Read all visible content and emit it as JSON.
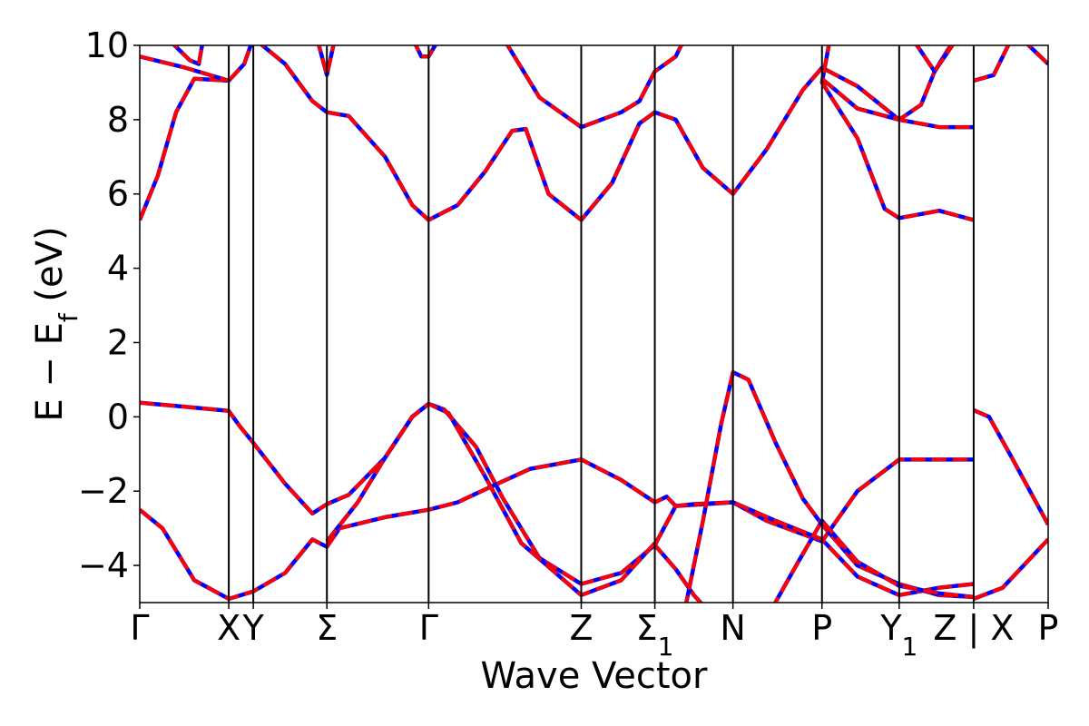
{
  "chart_data": {
    "type": "line",
    "title": "",
    "xlabel": "Wave Vector",
    "ylabel": "E − E_f (eV)",
    "ylabel_parts": {
      "main": "E − E",
      "sub": "f",
      "unit": " (eV)"
    },
    "ylim": [
      -5,
      10
    ],
    "yticks": [
      -4,
      -2,
      0,
      2,
      4,
      6,
      8,
      10
    ],
    "ytick_labels": [
      "−4",
      "−2",
      "0",
      "2",
      "4",
      "6",
      "8",
      "10"
    ],
    "xlim": [
      0,
      10.0
    ],
    "kpoints": [
      {
        "x": 0.0,
        "label": "Γ",
        "sub": ""
      },
      {
        "x": 0.98,
        "label": "X",
        "sub": ""
      },
      {
        "x": 1.25,
        "label": "Y",
        "sub": ""
      },
      {
        "x": 2.06,
        "label": "Σ",
        "sub": ""
      },
      {
        "x": 3.18,
        "label": "Γ",
        "sub": ""
      },
      {
        "x": 4.86,
        "label": "Z",
        "sub": ""
      },
      {
        "x": 5.67,
        "label": "Σ",
        "sub": "1"
      },
      {
        "x": 6.53,
        "label": "N",
        "sub": ""
      },
      {
        "x": 7.51,
        "label": "P",
        "sub": ""
      },
      {
        "x": 8.36,
        "label": "Y",
        "sub": "1"
      },
      {
        "x": 9.18,
        "label": "Z | X",
        "sub": ""
      },
      {
        "x": 10.0,
        "label": "P",
        "sub": ""
      }
    ],
    "series_style": [
      {
        "color": "#0000ff",
        "dashed": false
      },
      {
        "color": "#ff0000",
        "dashed": true
      }
    ],
    "bands": [
      [
        [
          0,
          0.38
        ],
        [
          0.5,
          0.27
        ],
        [
          0.98,
          0.16
        ],
        [
          1.1,
          -0.25
        ],
        [
          1.25,
          -0.7
        ],
        [
          1.6,
          -1.8
        ],
        [
          1.9,
          -2.6
        ],
        [
          2.06,
          -2.35
        ],
        [
          2.3,
          -2.1
        ],
        [
          2.7,
          -1.1
        ],
        [
          3.0,
          0.0
        ],
        [
          3.18,
          0.35
        ],
        [
          3.35,
          0.2
        ],
        [
          3.7,
          -0.8
        ],
        [
          4.0,
          -2.2
        ],
        [
          4.4,
          -3.8
        ],
        [
          4.86,
          -4.5
        ],
        [
          5.3,
          -4.2
        ],
        [
          5.67,
          -3.45
        ],
        [
          5.9,
          -4.1
        ],
        [
          6.1,
          -4.8
        ],
        [
          6.25,
          -5.2
        ]
      ],
      [
        [
          0,
          -2.5
        ],
        [
          0.25,
          -3.0
        ],
        [
          0.6,
          -4.4
        ],
        [
          0.98,
          -4.9
        ],
        [
          1.25,
          -4.7
        ],
        [
          1.6,
          -4.2
        ],
        [
          1.9,
          -3.3
        ],
        [
          2.06,
          -3.5
        ],
        [
          2.2,
          -3.0
        ],
        [
          2.7,
          -2.7
        ],
        [
          3.18,
          -2.5
        ],
        [
          3.5,
          -2.3
        ],
        [
          3.85,
          -1.9
        ],
        [
          4.3,
          -1.4
        ],
        [
          4.86,
          -1.15
        ],
        [
          5.3,
          -1.7
        ],
        [
          5.67,
          -2.3
        ],
        [
          5.8,
          -2.15
        ],
        [
          5.9,
          -2.4
        ],
        [
          6.53,
          -2.3
        ],
        [
          6.9,
          -2.8
        ],
        [
          7.51,
          -3.35
        ],
        [
          7.9,
          -2.0
        ],
        [
          8.36,
          -1.15
        ],
        [
          9.18,
          -1.15
        ]
      ],
      [
        [
          2.06,
          -3.35
        ],
        [
          2.4,
          -2.3
        ],
        [
          2.7,
          -1.1
        ],
        [
          3.0,
          0.0
        ],
        [
          3.18,
          0.35
        ],
        [
          3.4,
          0.1
        ],
        [
          3.8,
          -1.6
        ],
        [
          4.2,
          -3.4
        ],
        [
          4.86,
          -4.8
        ],
        [
          5.3,
          -4.4
        ],
        [
          5.67,
          -3.4
        ]
      ],
      [
        [
          5.67,
          -3.45
        ],
        [
          5.9,
          -2.4
        ],
        [
          6.1,
          -2.35
        ],
        [
          6.53,
          -2.3
        ],
        [
          7.0,
          -2.8
        ],
        [
          7.51,
          -3.3
        ],
        [
          7.9,
          -4.3
        ],
        [
          8.36,
          -4.8
        ],
        [
          8.8,
          -4.6
        ],
        [
          9.18,
          -4.5
        ]
      ],
      [
        [
          6.0,
          -5.2
        ],
        [
          6.2,
          -2.8
        ],
        [
          6.4,
          -0.2
        ],
        [
          6.53,
          1.2
        ],
        [
          6.7,
          1.0
        ],
        [
          7.0,
          -0.7
        ],
        [
          7.3,
          -2.2
        ],
        [
          7.51,
          -2.9
        ],
        [
          7.9,
          -4.0
        ],
        [
          8.36,
          -4.5
        ],
        [
          8.8,
          -4.8
        ],
        [
          9.18,
          -4.85
        ]
      ],
      [
        [
          6.95,
          -5.2
        ],
        [
          7.25,
          -3.9
        ],
        [
          7.51,
          -2.8
        ],
        [
          7.9,
          -3.9
        ],
        [
          8.36,
          -4.55
        ],
        [
          8.8,
          -4.75
        ],
        [
          9.18,
          -4.85
        ]
      ],
      [
        [
          9.18,
          0.18
        ],
        [
          9.35,
          0.0
        ],
        [
          9.6,
          -1.1
        ],
        [
          10.0,
          -2.9
        ]
      ],
      [
        [
          9.18,
          -4.9
        ],
        [
          9.5,
          -4.6
        ],
        [
          10.0,
          -3.3
        ]
      ],
      [
        [
          0,
          5.3
        ],
        [
          0.2,
          6.5
        ],
        [
          0.4,
          8.2
        ],
        [
          0.6,
          9.1
        ],
        [
          0.98,
          9.05
        ],
        [
          1.15,
          9.5
        ],
        [
          1.25,
          10.2
        ]
      ],
      [
        [
          0,
          9.7
        ],
        [
          0.5,
          9.4
        ],
        [
          0.98,
          9.05
        ]
      ],
      [
        [
          0.3,
          10.2
        ],
        [
          0.55,
          9.6
        ],
        [
          0.65,
          9.5
        ],
        [
          0.7,
          10.2
        ]
      ],
      [
        [
          1.25,
          10.2
        ],
        [
          1.6,
          9.5
        ],
        [
          1.9,
          8.5
        ],
        [
          2.06,
          8.2
        ],
        [
          2.3,
          8.1
        ],
        [
          2.7,
          7.0
        ],
        [
          3.0,
          5.7
        ],
        [
          3.18,
          5.3
        ],
        [
          3.5,
          5.7
        ],
        [
          3.8,
          6.6
        ],
        [
          4.1,
          7.7
        ],
        [
          4.25,
          7.75
        ],
        [
          4.5,
          6.0
        ],
        [
          4.86,
          5.3
        ],
        [
          5.2,
          6.3
        ],
        [
          5.5,
          7.9
        ],
        [
          5.67,
          8.2
        ],
        [
          5.9,
          8.0
        ],
        [
          6.2,
          6.7
        ],
        [
          6.53,
          6.0
        ],
        [
          6.9,
          7.2
        ],
        [
          7.3,
          8.8
        ],
        [
          7.51,
          9.4
        ],
        [
          7.9,
          8.9
        ],
        [
          8.36,
          8.0
        ],
        [
          8.6,
          8.4
        ],
        [
          8.75,
          9.3
        ],
        [
          8.9,
          9.9
        ],
        [
          9.0,
          10.2
        ]
      ],
      [
        [
          1.95,
          10.2
        ],
        [
          2.06,
          9.2
        ],
        [
          2.15,
          10.2
        ]
      ],
      [
        [
          3.0,
          10.2
        ],
        [
          3.1,
          9.7
        ],
        [
          3.18,
          9.7
        ],
        [
          3.3,
          10.2
        ]
      ],
      [
        [
          4.0,
          10.2
        ],
        [
          4.4,
          8.6
        ],
        [
          4.86,
          7.8
        ],
        [
          5.3,
          8.2
        ],
        [
          5.5,
          8.5
        ],
        [
          5.67,
          9.3
        ],
        [
          5.9,
          9.7
        ],
        [
          6.0,
          10.2
        ]
      ],
      [
        [
          7.6,
          10.2
        ],
        [
          7.51,
          9.0
        ],
        [
          7.9,
          7.5
        ],
        [
          8.2,
          5.6
        ],
        [
          8.36,
          5.35
        ],
        [
          8.8,
          5.55
        ],
        [
          9.18,
          5.3
        ]
      ],
      [
        [
          7.51,
          9.1
        ],
        [
          7.9,
          8.3
        ],
        [
          8.36,
          8.0
        ],
        [
          8.8,
          7.8
        ],
        [
          9.18,
          7.8
        ]
      ],
      [
        [
          8.5,
          10.2
        ],
        [
          8.75,
          9.3
        ],
        [
          9.0,
          10.2
        ]
      ],
      [
        [
          9.18,
          9.05
        ],
        [
          9.4,
          9.2
        ],
        [
          9.6,
          10.2
        ]
      ],
      [
        [
          9.7,
          10.2
        ],
        [
          10.0,
          9.5
        ]
      ]
    ]
  }
}
